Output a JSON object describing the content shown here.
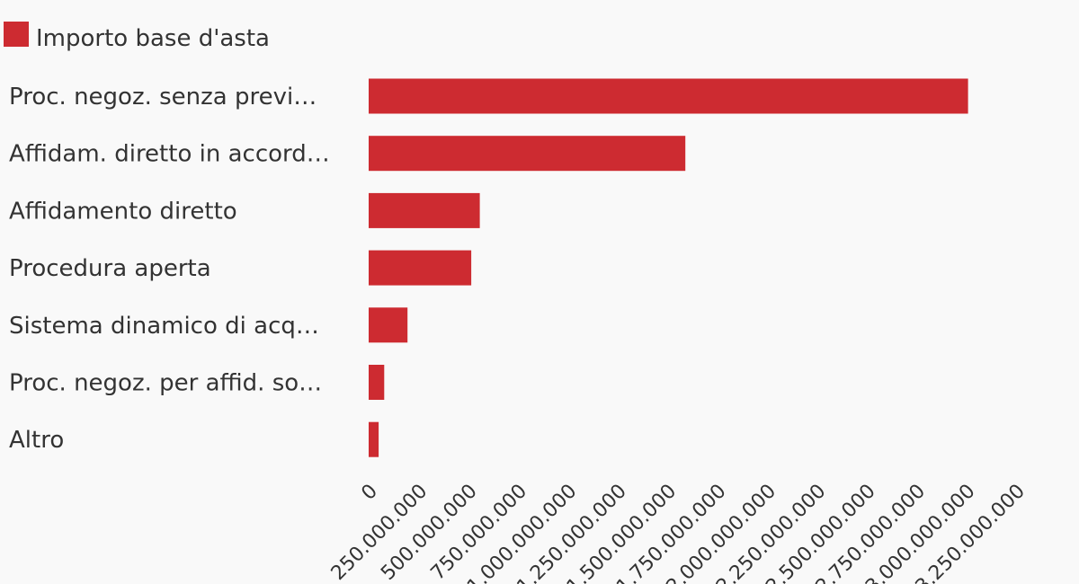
{
  "chart_data": {
    "type": "bar",
    "orientation": "horizontal",
    "legend": {
      "position": "top-left",
      "entries": [
        {
          "name": "Importo base d'asta",
          "color": "#cd2b31"
        }
      ]
    },
    "categories": [
      "Proc. negoz. senza previ…",
      "Affidam. diretto in accord…",
      "Affidamento diretto",
      "Procedura aperta",
      "Sistema dinamico di acq…",
      "Proc. negoz. per affid. so…",
      "Altro"
    ],
    "series": [
      {
        "name": "Importo base d'asta",
        "color": "#cd2b31",
        "values": [
          3009000000,
          1590000000,
          558000000,
          515000000,
          195000000,
          78000000,
          50000000
        ]
      }
    ],
    "xlim": [
      0,
      3250000000
    ],
    "x_ticks": [
      0,
      250000000,
      500000000,
      750000000,
      1000000000,
      1250000000,
      1500000000,
      1750000000,
      2000000000,
      2250000000,
      2500000000,
      2750000000,
      3000000000,
      3250000000
    ],
    "x_tick_labels": [
      "0",
      "250.000.000",
      "500.000.000",
      "750.000.000",
      "1.000.000.000",
      "1.250.000.000",
      "1.500.000.000",
      "1.750.000.000",
      "2.000.000.000",
      "2.250.000.000",
      "2.500.000.000",
      "2.750.000.000",
      "3.000.000.000",
      "3.250.000.000"
    ],
    "grid": false,
    "title": "",
    "xlabel": "",
    "ylabel": ""
  }
}
